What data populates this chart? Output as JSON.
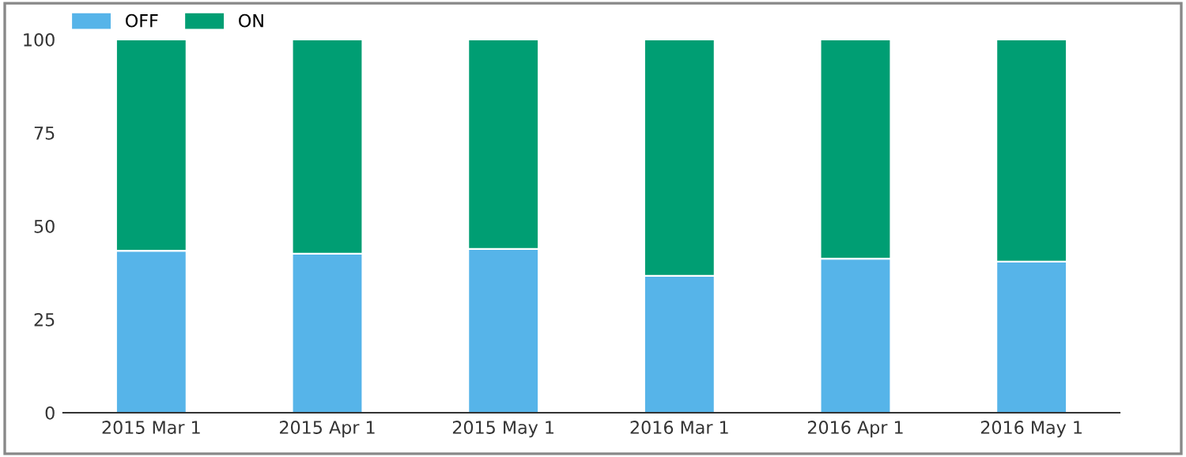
{
  "chart_data": {
    "type": "bar",
    "stacked": true,
    "categories": [
      "2015 Mar 1",
      "2015 Apr 1",
      "2015 May 1",
      "2016 Mar 1",
      "2016 Apr 1",
      "2016 May 1"
    ],
    "series": [
      {
        "name": "OFF",
        "color": "#56b4e9",
        "values": [
          43.4,
          42.6,
          43.9,
          36.7,
          41.3,
          40.5
        ]
      },
      {
        "name": "ON",
        "color": "#009e73",
        "values": [
          56.6,
          57.4,
          56.1,
          63.3,
          58.7,
          59.5
        ]
      }
    ],
    "ylim": [
      0,
      100
    ],
    "yticks": [
      0,
      25,
      50,
      75,
      100
    ],
    "grid": false,
    "legend": "top left"
  }
}
